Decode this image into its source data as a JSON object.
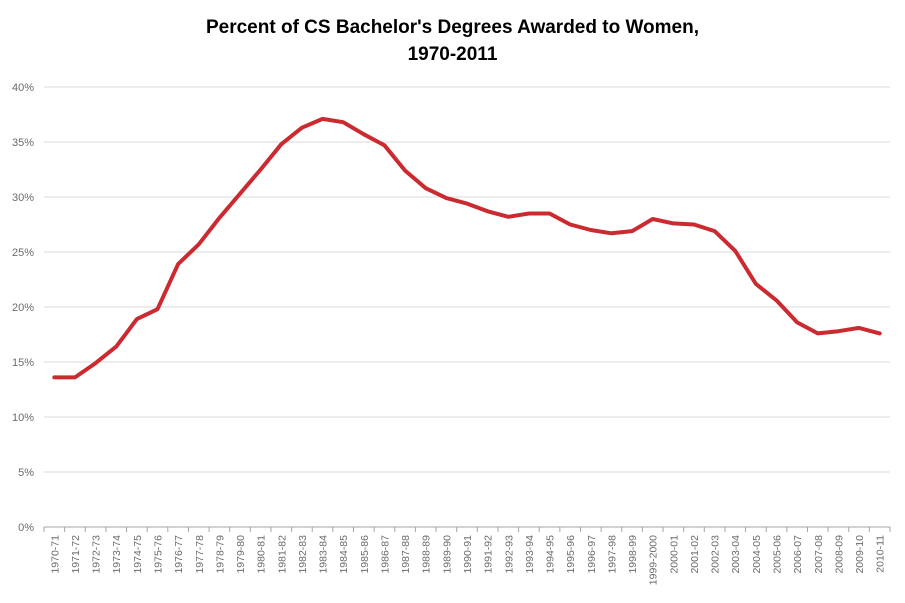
{
  "chart_data": {
    "type": "line",
    "title_line1": "Percent of CS Bachelor's Degrees Awarded to Women,",
    "title_line2": "1970-2011",
    "xlabel": "",
    "ylabel": "",
    "ylim": [
      0,
      40
    ],
    "y_ticks": [
      0,
      5,
      10,
      15,
      20,
      25,
      30,
      35,
      40
    ],
    "y_tick_labels": [
      "0%",
      "5%",
      "10%",
      "15%",
      "20%",
      "25%",
      "30%",
      "35%",
      "40%"
    ],
    "grid": true,
    "legend": "none",
    "line_color": "#cc2a31",
    "categories": [
      "1970-71",
      "1971-72",
      "1972-73",
      "1973-74",
      "1974-75",
      "1975-76",
      "1976-77",
      "1977-78",
      "1978-79",
      "1979-80",
      "1980-81",
      "1981-82",
      "1982-83",
      "1983-84",
      "1984-85",
      "1985-86",
      "1986-87",
      "1987-88",
      "1988-89",
      "1989-90",
      "1990-91",
      "1991-92",
      "1992-93",
      "1993-94",
      "1994-95",
      "1995-96",
      "1996-97",
      "1997-98",
      "1998-99",
      "1999-2000",
      "2000-01",
      "2001-02",
      "2002-03",
      "2003-04",
      "2004-05",
      "2005-06",
      "2006-07",
      "2007-08",
      "2008-09",
      "2009-10",
      "2010-11"
    ],
    "values": [
      13.6,
      13.6,
      14.9,
      16.4,
      18.9,
      19.8,
      23.9,
      25.7,
      28.1,
      30.3,
      32.5,
      34.8,
      36.3,
      37.1,
      36.8,
      35.7,
      34.7,
      32.4,
      30.8,
      29.9,
      29.4,
      28.7,
      28.2,
      28.5,
      28.5,
      27.5,
      27.0,
      26.7,
      26.9,
      28.0,
      27.6,
      27.5,
      26.9,
      25.1,
      22.1,
      20.6,
      18.6,
      17.6,
      17.8,
      18.1,
      17.6
    ]
  }
}
